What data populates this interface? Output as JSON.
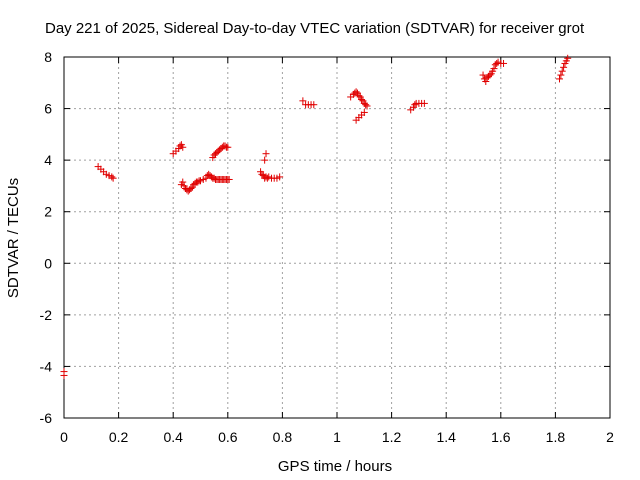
{
  "chart_data": {
    "type": "scatter",
    "title": "Day 221 of 2025, Sidereal Day-to-day VTEC variation (SDTVAR) for receiver grot",
    "xlabel": "GPS time / hours",
    "ylabel": "SDTVAR / TECUs",
    "xlim": [
      0,
      2
    ],
    "ylim": [
      -6,
      8
    ],
    "xticks": [
      0,
      0.2,
      0.4,
      0.6,
      0.8,
      1,
      1.2,
      1.4,
      1.6,
      1.8,
      2
    ],
    "xtick_labels": [
      "0",
      "0.2",
      "0.4",
      "0.6",
      "0.8",
      "1",
      "1.2",
      "1.4",
      "1.6",
      "1.8",
      "2"
    ],
    "yticks": [
      -6,
      -4,
      -2,
      0,
      2,
      4,
      6,
      8
    ],
    "ytick_labels": [
      "-6",
      "-4",
      "-2",
      "0",
      "2",
      "4",
      "6",
      "8"
    ],
    "grid": true,
    "marker": "+",
    "color": "#e00000",
    "series": [
      {
        "name": "SDTVAR",
        "x": [
          0.0,
          0.0,
          0.125,
          0.135,
          0.145,
          0.155,
          0.165,
          0.175,
          0.18,
          0.4,
          0.41,
          0.42,
          0.425,
          0.43,
          0.435,
          0.43,
          0.435,
          0.44,
          0.445,
          0.45,
          0.455,
          0.46,
          0.465,
          0.47,
          0.475,
          0.48,
          0.485,
          0.49,
          0.495,
          0.5,
          0.51,
          0.52,
          0.525,
          0.53,
          0.535,
          0.54,
          0.545,
          0.55,
          0.555,
          0.56,
          0.565,
          0.57,
          0.575,
          0.58,
          0.585,
          0.59,
          0.595,
          0.6,
          0.605,
          0.545,
          0.55,
          0.555,
          0.56,
          0.565,
          0.57,
          0.575,
          0.58,
          0.585,
          0.59,
          0.595,
          0.6,
          0.72,
          0.725,
          0.73,
          0.735,
          0.74,
          0.745,
          0.75,
          0.76,
          0.77,
          0.78,
          0.79,
          0.735,
          0.74,
          0.875,
          0.885,
          0.895,
          0.905,
          0.915,
          1.05,
          1.06,
          1.065,
          1.07,
          1.075,
          1.08,
          1.085,
          1.09,
          1.095,
          1.1,
          1.105,
          1.11,
          1.07,
          1.08,
          1.09,
          1.1,
          1.27,
          1.28,
          1.285,
          1.29,
          1.3,
          1.31,
          1.32,
          1.535,
          1.54,
          1.545,
          1.55,
          1.555,
          1.56,
          1.565,
          1.57,
          1.575,
          1.58,
          1.585,
          1.59,
          1.6,
          1.61,
          1.815,
          1.82,
          1.825,
          1.83,
          1.835,
          1.84,
          1.845
        ],
        "y": [
          -4.2,
          -4.35,
          3.75,
          3.65,
          3.55,
          3.45,
          3.4,
          3.35,
          3.3,
          4.25,
          4.35,
          4.45,
          4.55,
          4.6,
          4.5,
          3.05,
          3.15,
          3.0,
          2.9,
          2.85,
          2.8,
          2.85,
          2.9,
          2.95,
          3.05,
          3.1,
          3.15,
          3.15,
          3.2,
          3.2,
          3.25,
          3.3,
          3.4,
          3.45,
          3.4,
          3.35,
          3.3,
          3.3,
          3.25,
          3.25,
          3.25,
          3.25,
          3.25,
          3.25,
          3.25,
          3.25,
          3.25,
          3.25,
          3.25,
          4.1,
          4.2,
          4.25,
          4.3,
          4.35,
          4.4,
          4.45,
          4.5,
          4.55,
          4.55,
          4.5,
          4.5,
          3.55,
          3.45,
          3.4,
          3.3,
          3.35,
          3.3,
          3.35,
          3.3,
          3.3,
          3.3,
          3.35,
          4.0,
          4.25,
          6.3,
          6.15,
          6.15,
          6.15,
          6.15,
          6.45,
          6.55,
          6.6,
          6.65,
          6.6,
          6.5,
          6.45,
          6.35,
          6.3,
          6.2,
          6.15,
          6.1,
          5.55,
          5.65,
          5.75,
          5.85,
          5.95,
          6.05,
          6.15,
          6.2,
          6.2,
          6.2,
          6.2,
          7.3,
          7.15,
          7.05,
          7.2,
          7.25,
          7.3,
          7.35,
          7.45,
          7.55,
          7.7,
          7.75,
          7.8,
          7.75,
          7.75,
          7.15,
          7.3,
          7.45,
          7.6,
          7.75,
          7.85,
          7.95
        ]
      }
    ]
  }
}
